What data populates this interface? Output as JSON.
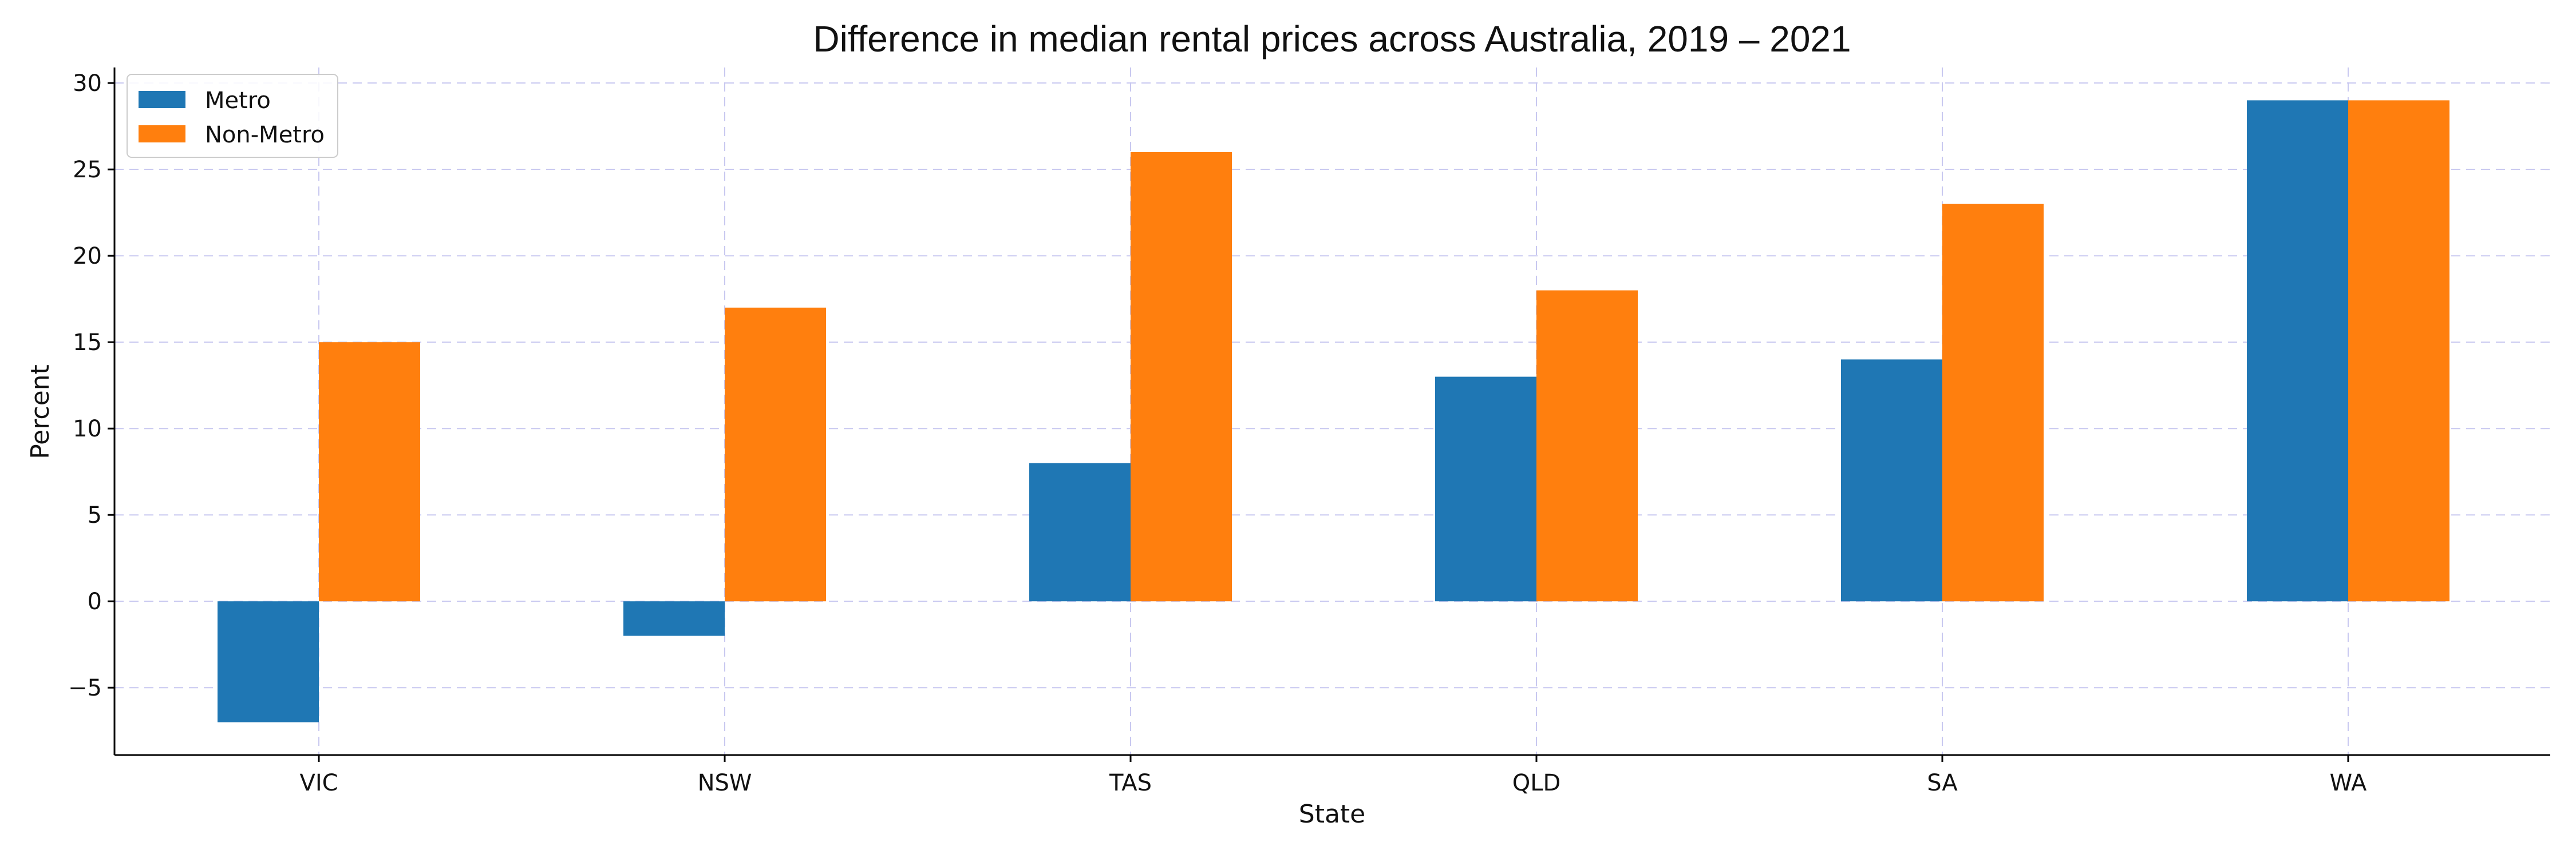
{
  "chart_data": {
    "type": "bar",
    "title": "Difference in median rental prices across Australia, 2019 – 2021",
    "xlabel": "State",
    "ylabel": "Percent",
    "categories": [
      "VIC",
      "NSW",
      "TAS",
      "QLD",
      "SA",
      "WA"
    ],
    "series": [
      {
        "name": "Metro",
        "color": "#1f77b4",
        "values": [
          -7,
          -2,
          8,
          13,
          14,
          29
        ]
      },
      {
        "name": "Non-Metro",
        "color": "#ff7f0e",
        "values": [
          15,
          17,
          26,
          18,
          23,
          29
        ]
      }
    ],
    "ylim": [
      -8.9,
      30.9
    ],
    "yticks": [
      -5,
      0,
      5,
      10,
      15,
      20,
      25,
      30
    ],
    "ytick_labels": [
      "−5",
      "0",
      "5",
      "10",
      "15",
      "20",
      "25",
      "30"
    ],
    "grid": true,
    "grid_color": "#c8c8f0",
    "legend_position": "top-left"
  }
}
